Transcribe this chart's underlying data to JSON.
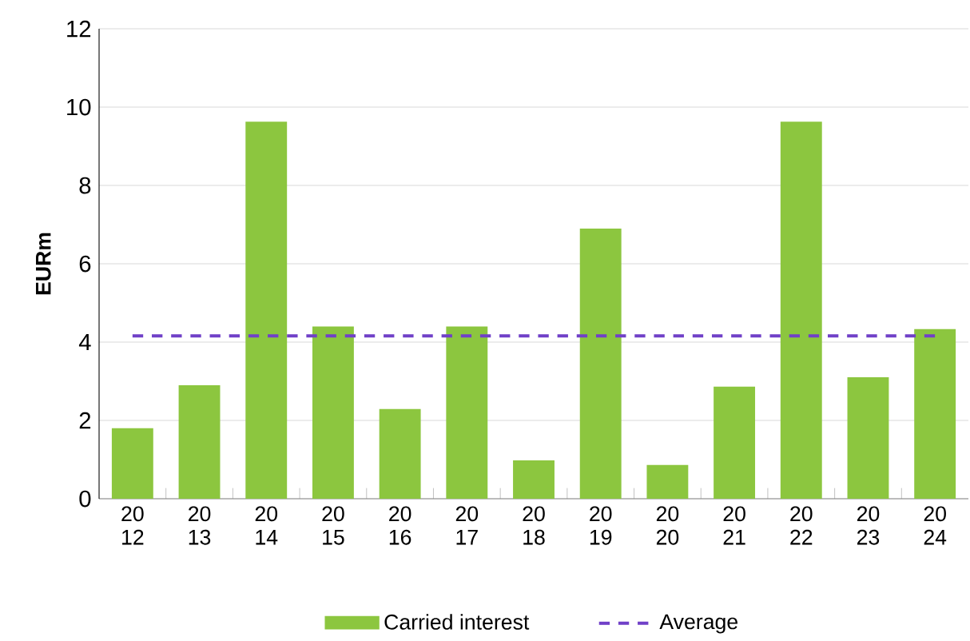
{
  "chart_data": {
    "type": "bar",
    "ylabel": "EURm",
    "categories": [
      "20 12",
      "20 13",
      "20 14",
      "20 15",
      "20 16",
      "20 17",
      "20 18",
      "20 19",
      "20 20",
      "20 21",
      "20 22",
      "20 23",
      "20 24"
    ],
    "series": [
      {
        "name": "Carried interest",
        "color": "#8cc63f",
        "values": [
          1.8,
          2.9,
          9.63,
          4.4,
          2.29,
          4.4,
          0.98,
          6.9,
          0.86,
          2.86,
          9.63,
          3.1,
          4.33
        ]
      },
      {
        "name": "Average",
        "type": "line",
        "line_style": "dashed",
        "color": "#7040c8",
        "values": [
          4.16,
          4.16,
          4.16,
          4.16,
          4.16,
          4.16,
          4.16,
          4.16,
          4.16,
          4.16,
          4.16,
          4.16,
          4.16
        ]
      }
    ],
    "ylim": [
      0,
      12
    ],
    "yticks": [
      0,
      2,
      4,
      6,
      8,
      10,
      12
    ],
    "grid": "y",
    "legend": "bottom"
  }
}
